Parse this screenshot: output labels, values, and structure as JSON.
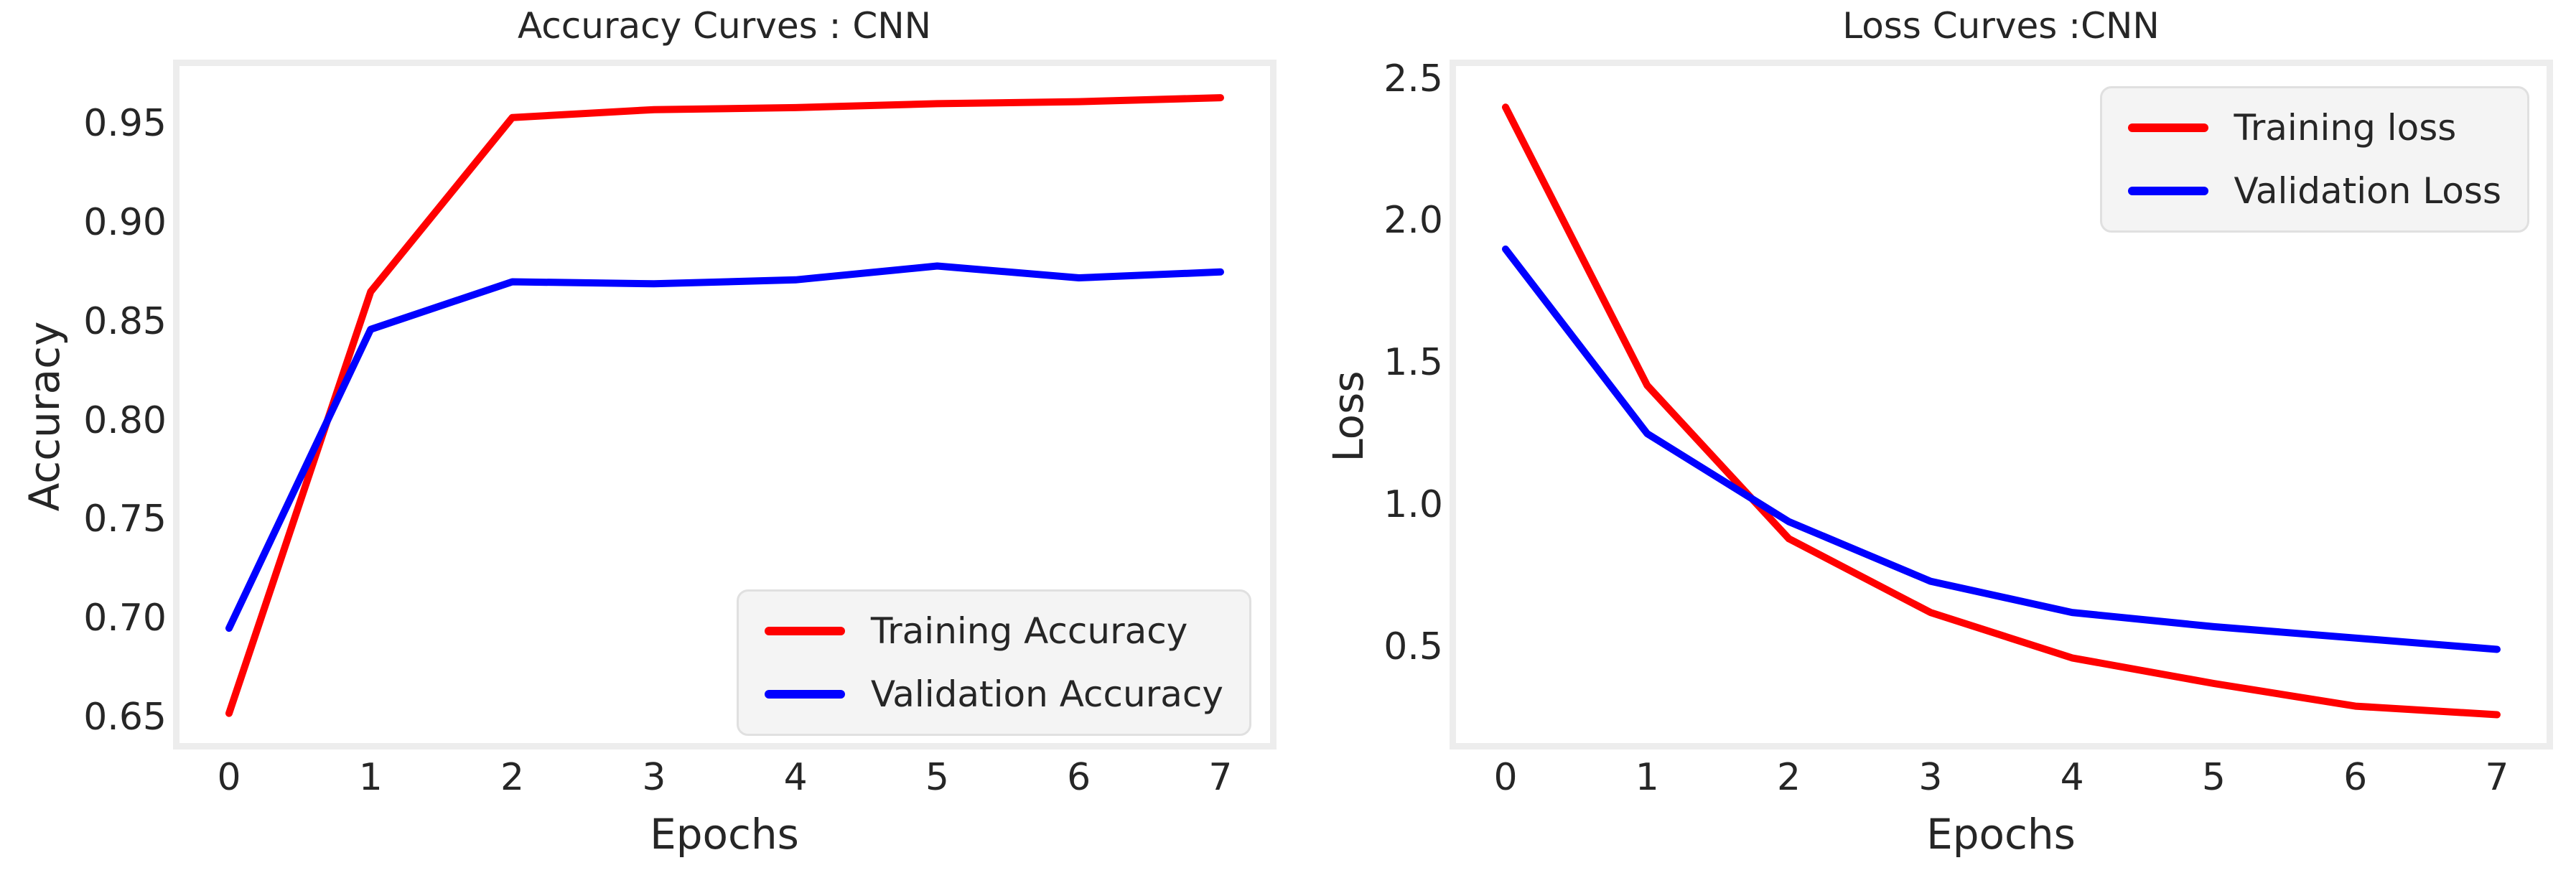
{
  "figure": {
    "background": "#ffffff",
    "text_color": "#262626",
    "spine_color": "#ededed",
    "legend_background": "#f4f4f4",
    "accent_red": "#ff0000",
    "accent_blue": "#0000ff"
  },
  "chart_data": [
    {
      "type": "line",
      "title": "Accuracy Curves : CNN",
      "xlabel": "Epochs",
      "ylabel": "Accuracy",
      "x": [
        0,
        1,
        2,
        3,
        4,
        5,
        6,
        7
      ],
      "xtick_labels": [
        "0",
        "1",
        "2",
        "3",
        "4",
        "5",
        "6",
        "7"
      ],
      "ytick_values": [
        0.65,
        0.7,
        0.75,
        0.8,
        0.85,
        0.9,
        0.95
      ],
      "ytick_labels": [
        "0.65",
        "0.70",
        "0.75",
        "0.80",
        "0.85",
        "0.90",
        "0.95"
      ],
      "xlim": [
        -0.35,
        7.35
      ],
      "ylim": [
        0.637,
        0.979
      ],
      "grid": false,
      "legend_position": "lower right",
      "series": [
        {
          "name": "Training Accuracy",
          "color": "#ff0000",
          "values": [
            0.652,
            0.865,
            0.953,
            0.957,
            0.958,
            0.96,
            0.961,
            0.963
          ]
        },
        {
          "name": "Validation Accuracy",
          "color": "#0000ff",
          "values": [
            0.695,
            0.846,
            0.87,
            0.869,
            0.871,
            0.878,
            0.872,
            0.875
          ]
        }
      ]
    },
    {
      "type": "line",
      "title": "Loss Curves :CNN",
      "xlabel": "Epochs",
      "ylabel": "Loss",
      "x": [
        0,
        1,
        2,
        3,
        4,
        5,
        6,
        7
      ],
      "xtick_labels": [
        "0",
        "1",
        "2",
        "3",
        "4",
        "5",
        "6",
        "7"
      ],
      "ytick_values": [
        0.5,
        1.0,
        1.5,
        2.0,
        2.5
      ],
      "ytick_labels": [
        "0.5",
        "1.0",
        "1.5",
        "2.0",
        "2.5"
      ],
      "xlim": [
        -0.35,
        7.35
      ],
      "ylim": [
        0.16,
        2.545
      ],
      "grid": false,
      "legend_position": "upper right",
      "series": [
        {
          "name": "Training loss",
          "color": "#ff0000",
          "values": [
            2.4,
            1.42,
            0.88,
            0.62,
            0.46,
            0.37,
            0.29,
            0.26
          ]
        },
        {
          "name": "Validation Loss",
          "color": "#0000ff",
          "values": [
            1.9,
            1.25,
            0.94,
            0.73,
            0.62,
            0.57,
            0.53,
            0.49
          ]
        }
      ]
    }
  ]
}
